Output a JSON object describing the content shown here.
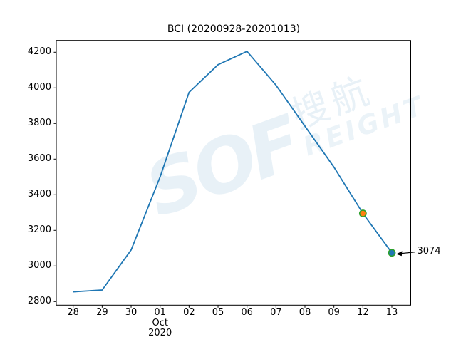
{
  "title": "BCI (20200928-20201013)",
  "watermark": {
    "latin_big": "SOF",
    "cn": "搜航",
    "latin_small": "REIGHT"
  },
  "colors": {
    "line": "#1f77b4",
    "marker_edge": "#2ca02c",
    "marker_orange_fill": "#ff7f0e",
    "marker_blue_fill": "#1f77b4",
    "axis": "#000000",
    "watermark": "rgba(31,119,180,0.10)"
  },
  "chart_data": {
    "type": "line",
    "title": "BCI (20200928-20201013)",
    "x_tick_labels": [
      [
        "28"
      ],
      [
        "29"
      ],
      [
        "30"
      ],
      [
        "01",
        "Oct",
        "2020"
      ],
      [
        "02"
      ],
      [
        "05"
      ],
      [
        "06"
      ],
      [
        "07"
      ],
      [
        "08"
      ],
      [
        "09"
      ],
      [
        "12"
      ],
      [
        "13"
      ]
    ],
    "values": [
      2855,
      2865,
      3090,
      3500,
      3975,
      4130,
      4205,
      4015,
      3785,
      3555,
      3295,
      3074
    ],
    "y_ticks": [
      2800,
      3000,
      3200,
      3400,
      3600,
      3800,
      4000,
      4200
    ],
    "ylim": [
      2781,
      4266
    ],
    "xlim": [
      -0.58,
      11.65
    ],
    "grid": false,
    "legend": null,
    "line_color": "#1f77b4",
    "highlight_points": [
      {
        "index": 10,
        "fill": "#ff7f0e",
        "edge": "#2ca02c"
      },
      {
        "index": 11,
        "fill": "#1f77b4",
        "edge": "#2ca02c"
      }
    ],
    "annotation": {
      "text": "3074",
      "point_index": 11
    }
  }
}
